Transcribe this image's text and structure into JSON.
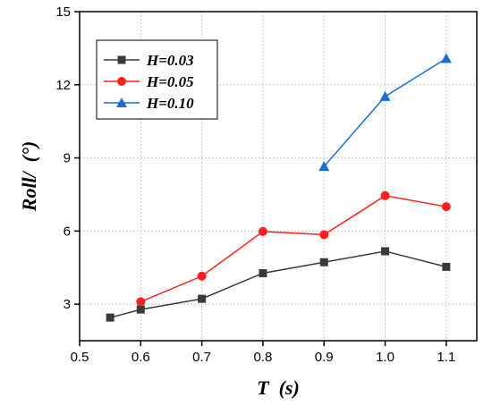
{
  "chart_data": {
    "type": "line",
    "title": "",
    "xlabel": "T  (s)",
    "ylabel": "Roll/  (°)",
    "xlim": [
      0.5,
      1.15
    ],
    "ylim": [
      1.5,
      15
    ],
    "x_ticks": [
      0.5,
      0.6,
      0.7,
      0.8,
      0.9,
      1.0,
      1.1
    ],
    "x_tick_labels": [
      "0.5",
      "0.6",
      "0.7",
      "0.8",
      "0.9",
      "1.0",
      "1.1"
    ],
    "y_ticks": [
      3,
      6,
      9,
      12,
      15
    ],
    "y_tick_labels": [
      "3",
      "6",
      "9",
      "12",
      "15"
    ],
    "grid": true,
    "legend_position": "top-left",
    "series": [
      {
        "name": "H=0.03",
        "color": "#3a3a3a",
        "marker": "square",
        "x": [
          0.55,
          0.6,
          0.7,
          0.8,
          0.9,
          1.0,
          1.1
        ],
        "y": [
          2.45,
          2.78,
          3.22,
          4.27,
          4.72,
          5.17,
          4.53
        ]
      },
      {
        "name": "H=0.05",
        "color": "#ff1f1f",
        "marker": "circle",
        "x": [
          0.6,
          0.7,
          0.8,
          0.9,
          1.0,
          1.1
        ],
        "y": [
          3.1,
          4.15,
          5.98,
          5.85,
          7.45,
          7.0
        ]
      },
      {
        "name": "H=0.10",
        "color": "#1a6fd6",
        "marker": "triangle",
        "x": [
          0.9,
          1.0,
          1.1
        ],
        "y": [
          8.65,
          11.52,
          13.08
        ]
      }
    ]
  }
}
